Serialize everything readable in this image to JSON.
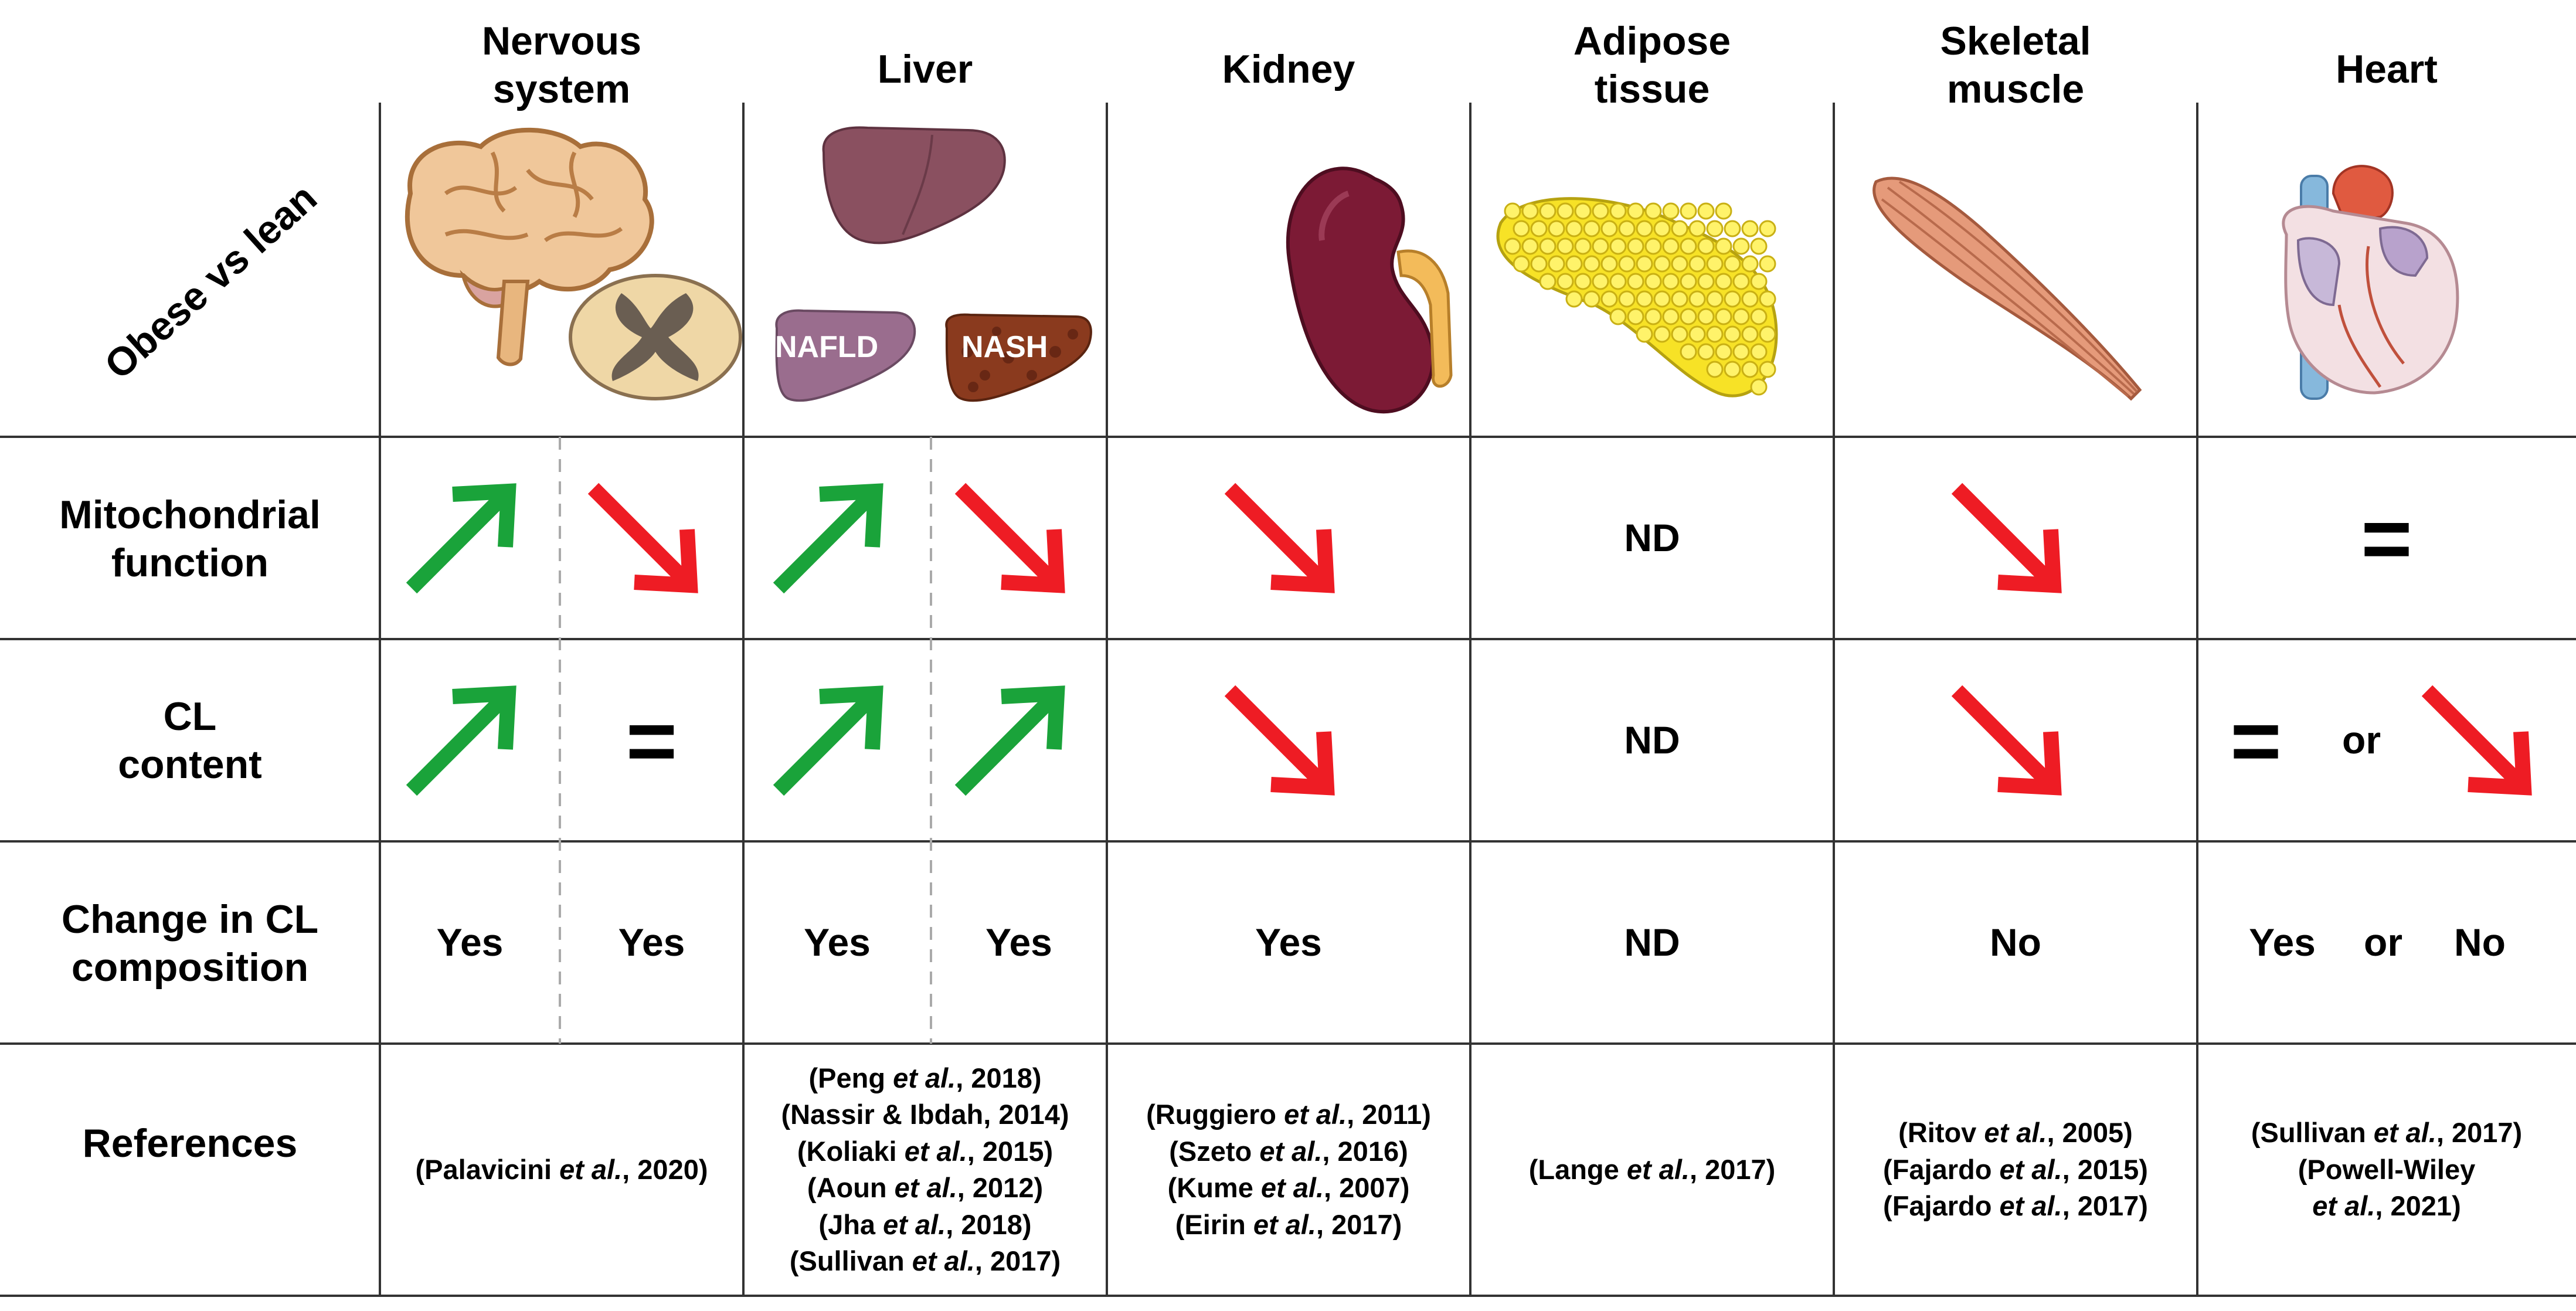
{
  "corner_label": "Obese vs lean",
  "columns": [
    {
      "id": "nervous",
      "header_lines": [
        "Nervous",
        "system"
      ]
    },
    {
      "id": "liver",
      "header_lines": [
        "Liver"
      ]
    },
    {
      "id": "kidney",
      "header_lines": [
        "Kidney"
      ]
    },
    {
      "id": "adipose",
      "header_lines": [
        "Adipose",
        "tissue"
      ]
    },
    {
      "id": "muscle",
      "header_lines": [
        "Skeletal",
        "muscle"
      ]
    },
    {
      "id": "heart",
      "header_lines": [
        "Heart"
      ]
    }
  ],
  "organ_labels": {
    "nafld": "NAFLD",
    "nash": "NASH"
  },
  "rows": {
    "mito": {
      "label_lines": [
        "Mitochondrial",
        "function"
      ]
    },
    "cl": {
      "label_lines": [
        "CL",
        "content"
      ]
    },
    "comp": {
      "label_lines": [
        "Change in CL",
        "composition"
      ]
    },
    "refs": {
      "label_lines": [
        "References"
      ]
    }
  },
  "cells": {
    "mito_nervous_a": "up",
    "mito_nervous_b": "down",
    "mito_liver_a": "up",
    "mito_liver_b": "down",
    "mito_kidney": "down",
    "mito_adipose": "ND",
    "mito_muscle": "down",
    "mito_heart": "=",
    "cl_nervous_a": "up",
    "cl_nervous_b": "=",
    "cl_liver_a": "up",
    "cl_liver_b": "up",
    "cl_kidney": "down",
    "cl_adipose": "ND",
    "cl_muscle": "down",
    "cl_heart_eq": "=",
    "cl_heart_or": "or",
    "cl_heart_down": "down",
    "comp_nervous_a": "Yes",
    "comp_nervous_b": "Yes",
    "comp_liver_a": "Yes",
    "comp_liver_b": "Yes",
    "comp_kidney": "Yes",
    "comp_adipose": "ND",
    "comp_muscle": "No",
    "comp_heart_yes": "Yes",
    "comp_heart_or": "or",
    "comp_heart_no": "No"
  },
  "references": {
    "nervous": [
      {
        "pre": "(Palavicini ",
        "it": "et al.",
        "post": ", 2020)"
      }
    ],
    "liver": [
      {
        "pre": "(Peng ",
        "it": "et al.",
        "post": ", 2018)"
      },
      {
        "pre": "(Nassir & Ibdah, 2014)",
        "it": "",
        "post": ""
      },
      {
        "pre": "(Koliaki ",
        "it": "et al.",
        "post": ", 2015)"
      },
      {
        "pre": "(Aoun ",
        "it": "et al.",
        "post": ", 2012)"
      },
      {
        "pre": "(Jha ",
        "it": "et al.",
        "post": ", 2018)"
      },
      {
        "pre": "(Sullivan ",
        "it": "et al.",
        "post": ", 2017)"
      }
    ],
    "kidney": [
      {
        "pre": "(Ruggiero ",
        "it": "et al.",
        "post": ", 2011)"
      },
      {
        "pre": "(Szeto ",
        "it": "et al.",
        "post": ", 2016)"
      },
      {
        "pre": "(Kume ",
        "it": "et al.",
        "post": ", 2007)"
      },
      {
        "pre": "(Eirin ",
        "it": "et al.",
        "post": ", 2017)"
      }
    ],
    "adipose": [
      {
        "pre": "(Lange ",
        "it": "et al.",
        "post": ", 2017)"
      }
    ],
    "muscle": [
      {
        "pre": "(Ritov ",
        "it": "et al.",
        "post": ", 2005)"
      },
      {
        "pre": "(Fajardo ",
        "it": "et al.",
        "post": ", 2015)"
      },
      {
        "pre": "(Fajardo ",
        "it": "et al.",
        "post": ", 2017)"
      }
    ],
    "heart": [
      {
        "pre": "(Sullivan ",
        "it": "et al.",
        "post": ", 2017)"
      },
      {
        "pre": "(Powell-Wiley",
        "it": "",
        "post": ""
      },
      {
        "pre": "",
        "it": "et al.",
        "post": ", 2021)"
      }
    ]
  },
  "colors": {
    "up_arrow": "#1aa33a",
    "down_arrow": "#ee1c24",
    "grid": "#333333",
    "dashed": "#aaaaaa"
  }
}
